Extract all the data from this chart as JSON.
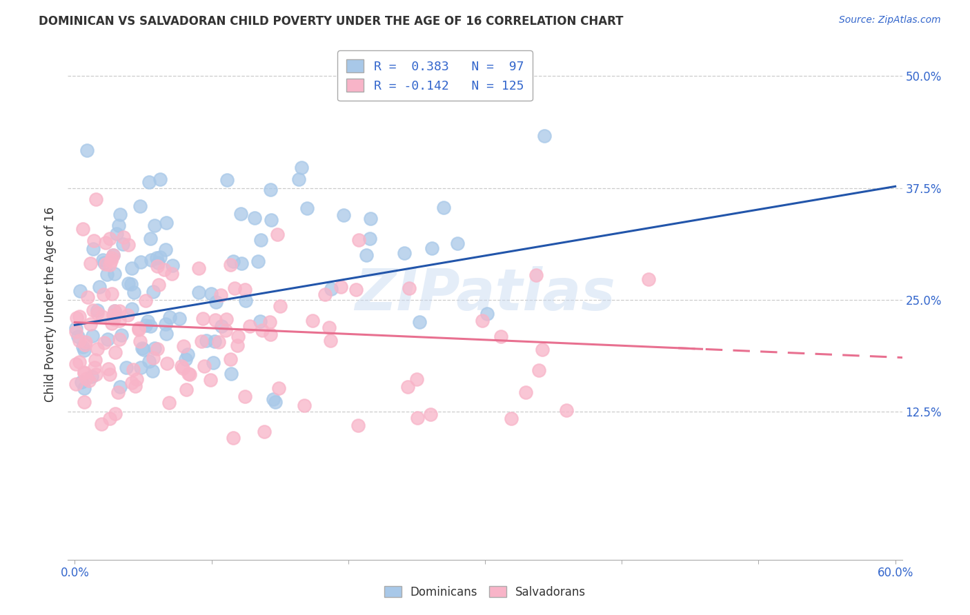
{
  "title": "DOMINICAN VS SALVADORAN CHILD POVERTY UNDER THE AGE OF 16 CORRELATION CHART",
  "source": "Source: ZipAtlas.com",
  "xlim": [
    0.0,
    0.6
  ],
  "ylim": [
    -0.04,
    0.53
  ],
  "x_ticks": [
    0.0,
    0.6
  ],
  "x_tick_labels": [
    "0.0%",
    "60.0%"
  ],
  "y_ticks": [
    0.125,
    0.25,
    0.375,
    0.5
  ],
  "y_tick_labels": [
    "12.5%",
    "25.0%",
    "37.5%",
    "50.0%"
  ],
  "dominican_R": 0.383,
  "dominican_N": 97,
  "salvadoran_R": -0.142,
  "salvadoran_N": 125,
  "dominican_color": "#a8c8e8",
  "salvadoran_color": "#f8b4c8",
  "dominican_line_color": "#2255aa",
  "salvadoran_line_color": "#e87090",
  "watermark": "ZIPatlas",
  "legend_label_1": "Dominicans",
  "legend_label_2": "Salvadorans",
  "title_fontsize": 12,
  "source_fontsize": 10,
  "tick_fontsize": 12,
  "ylabel_fontsize": 12
}
